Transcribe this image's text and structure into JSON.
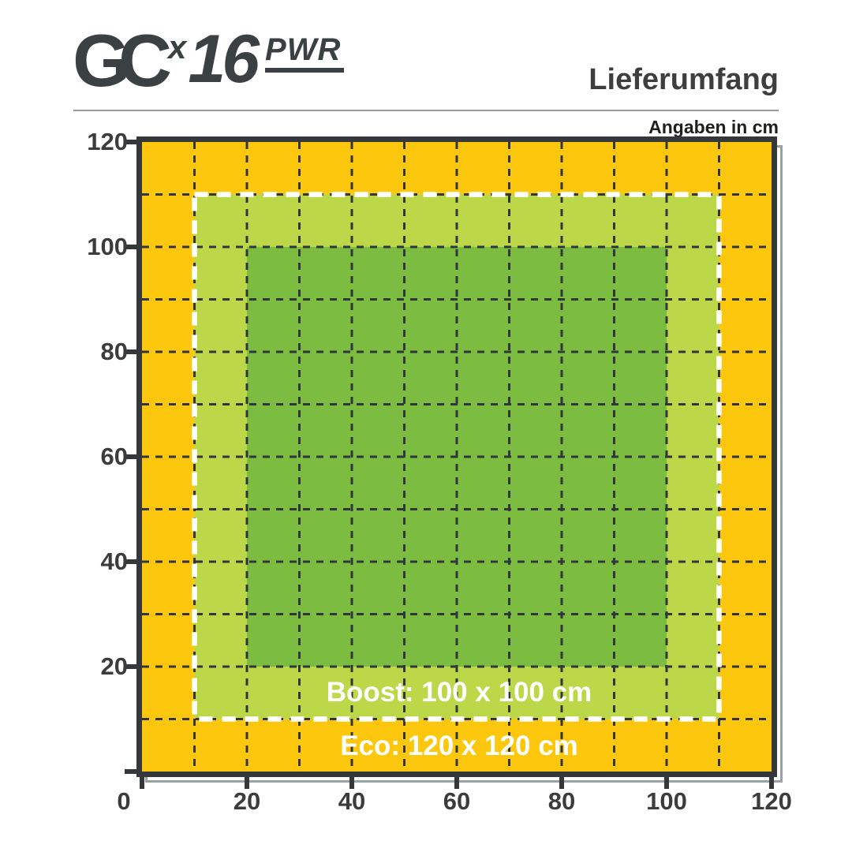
{
  "header": {
    "logo": {
      "gc": "GC",
      "sup": "x",
      "model": "16",
      "variant": "PWR"
    },
    "title": "Lieferumfang",
    "subtitle": "Angaben in cm"
  },
  "chart_data": {
    "type": "area",
    "title": "Lieferumfang",
    "units": "cm",
    "xlabel": "",
    "ylabel": "",
    "xlim": [
      0,
      120
    ],
    "ylim": [
      0,
      120
    ],
    "x_ticks": [
      0,
      20,
      40,
      60,
      80,
      100,
      120
    ],
    "y_ticks": [
      0,
      20,
      40,
      60,
      80,
      100,
      120
    ],
    "grid_step": 10,
    "grid_style": "dashed",
    "zones": [
      {
        "name": "eco",
        "label": "Eco: 120 x 120 cm",
        "x0": 0,
        "y0": 0,
        "x1": 120,
        "y1": 120,
        "color": "#FDC70D",
        "border": ""
      },
      {
        "name": "boost",
        "label": "Boost: 100 x 100 cm",
        "x0": 10,
        "y0": 10,
        "x1": 110,
        "y1": 110,
        "color": "#BCD849",
        "border": "dashed-white"
      },
      {
        "name": "core",
        "label": "",
        "x0": 20,
        "y0": 20,
        "x1": 100,
        "y1": 100,
        "color": "#7CBC41",
        "border": ""
      }
    ],
    "colors": {
      "grid": "#31363A",
      "frame": "#34383B",
      "frame_shadow": "#9BA0A3",
      "zone_label_text": "#FFFFFF",
      "tick_label_text": "#3C3C3C"
    }
  }
}
